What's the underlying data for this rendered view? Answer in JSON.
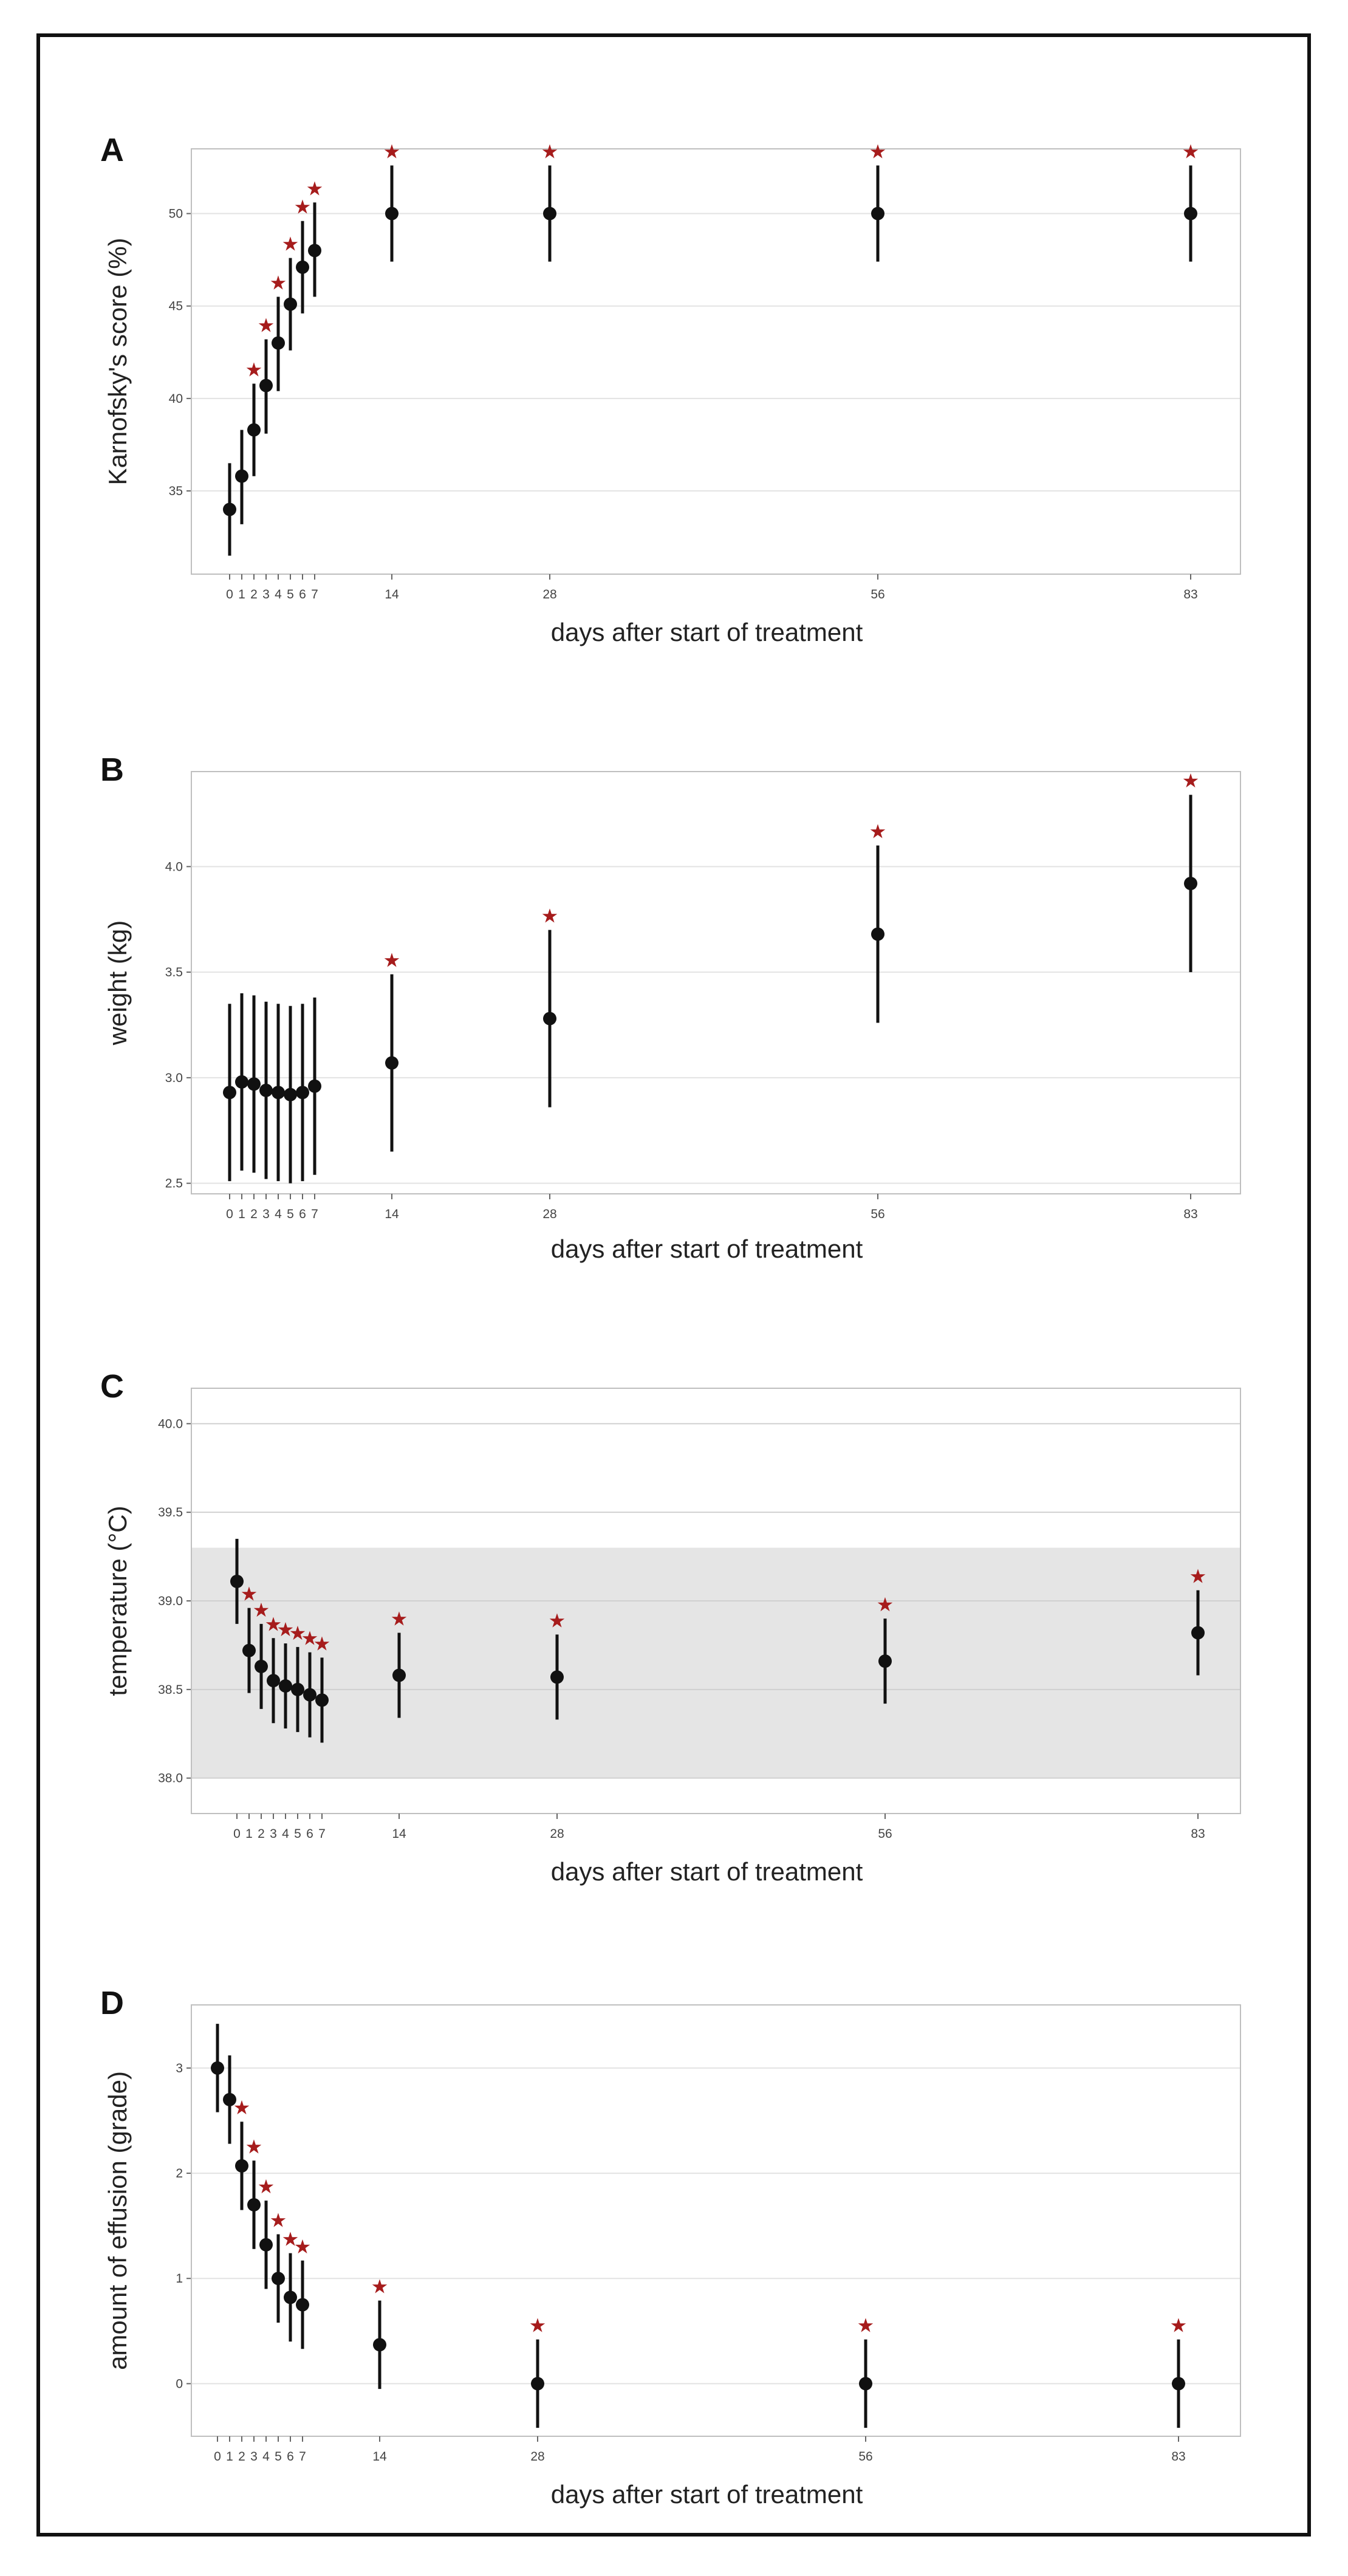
{
  "colors": {
    "star": "#a61c1c",
    "point": "#111111",
    "grid": "#e3e3e3",
    "panel_border": "#bfbfbf",
    "normal_range": "#e5e5e5"
  },
  "chart_data": [
    {
      "panel_label": "A",
      "type": "scatter",
      "xlabel": "days after start of treatment",
      "ylabel": "Karnofsky's score (%)",
      "x": [
        0,
        1,
        2,
        3,
        4,
        5,
        6,
        7,
        14,
        28,
        56,
        83
      ],
      "xticks": [
        "0",
        "1",
        "2",
        "3",
        "4",
        "5",
        "6",
        "7",
        "14",
        "28",
        "56",
        "83"
      ],
      "y": [
        34.0,
        35.8,
        38.3,
        40.7,
        43.0,
        45.1,
        47.1,
        48.0,
        50.0,
        50.0,
        50.0,
        50.0
      ],
      "err_low": [
        31.5,
        33.2,
        35.8,
        38.1,
        40.4,
        42.6,
        44.6,
        45.5,
        47.4,
        47.4,
        47.4,
        47.4
      ],
      "err_high": [
        36.5,
        38.3,
        40.8,
        43.2,
        45.5,
        47.6,
        49.6,
        50.6,
        52.6,
        52.6,
        52.6,
        52.6
      ],
      "significant": [
        false,
        false,
        true,
        true,
        true,
        true,
        true,
        true,
        true,
        true,
        true,
        true
      ],
      "ylim": [
        30.5,
        53.5
      ],
      "yticks": [
        35,
        40,
        45,
        50
      ],
      "ytick_labels": [
        "35",
        "40",
        "45",
        "50"
      ],
      "significance_marker": "★"
    },
    {
      "panel_label": "B",
      "type": "scatter",
      "xlabel": "days after start of treatment",
      "ylabel": "weight (kg)",
      "x": [
        0,
        1,
        2,
        3,
        4,
        5,
        6,
        7,
        14,
        28,
        56,
        83
      ],
      "xticks": [
        "0",
        "1",
        "2",
        "3",
        "4",
        "5",
        "6",
        "7",
        "14",
        "28",
        "56",
        "83"
      ],
      "y": [
        2.93,
        2.98,
        2.97,
        2.94,
        2.93,
        2.92,
        2.93,
        2.96,
        3.07,
        3.28,
        3.68,
        3.92
      ],
      "err_low": [
        2.51,
        2.56,
        2.55,
        2.52,
        2.51,
        2.5,
        2.51,
        2.54,
        2.65,
        2.86,
        3.26,
        3.5
      ],
      "err_high": [
        3.35,
        3.4,
        3.39,
        3.36,
        3.35,
        3.34,
        3.35,
        3.38,
        3.49,
        3.7,
        4.1,
        4.34
      ],
      "significant": [
        false,
        false,
        false,
        false,
        false,
        false,
        false,
        false,
        true,
        true,
        true,
        true
      ],
      "ylim": [
        2.45,
        4.45
      ],
      "yticks": [
        2.5,
        3.0,
        3.5,
        4.0
      ],
      "ytick_labels": [
        "2.5",
        "3.0",
        "3.5",
        "4.0"
      ],
      "significance_marker": "★"
    },
    {
      "panel_label": "C",
      "type": "scatter",
      "xlabel": "days after start of treatment",
      "ylabel": "temperature (°C)",
      "x": [
        0,
        1,
        2,
        3,
        4,
        5,
        6,
        7,
        14,
        28,
        56,
        83
      ],
      "xticks": [
        "0",
        "1",
        "2",
        "3",
        "4",
        "5",
        "6",
        "7",
        "14",
        "28",
        "56",
        "83"
      ],
      "y": [
        39.11,
        38.72,
        38.63,
        38.55,
        38.52,
        38.5,
        38.47,
        38.44,
        38.58,
        38.57,
        38.66,
        38.82
      ],
      "err_low": [
        38.87,
        38.48,
        38.39,
        38.31,
        38.28,
        38.26,
        38.23,
        38.2,
        38.34,
        38.33,
        38.42,
        38.58
      ],
      "err_high": [
        39.35,
        38.96,
        38.87,
        38.79,
        38.76,
        38.74,
        38.71,
        38.68,
        38.82,
        38.81,
        38.9,
        39.06
      ],
      "significant": [
        false,
        true,
        true,
        true,
        true,
        true,
        true,
        true,
        true,
        true,
        true,
        true
      ],
      "ylim": [
        37.8,
        40.2
      ],
      "yticks": [
        38.0,
        38.5,
        39.0,
        39.5,
        40.0
      ],
      "ytick_labels": [
        "38.0",
        "38.5",
        "39.0",
        "39.5",
        "40.0"
      ],
      "reference_band": [
        38.0,
        39.3
      ],
      "significance_marker": "★"
    },
    {
      "panel_label": "D",
      "type": "scatter",
      "xlabel": "days after start of treatment",
      "ylabel": "amount of effusion (grade)",
      "x": [
        0,
        1,
        2,
        3,
        4,
        5,
        6,
        7,
        14,
        28,
        56,
        83
      ],
      "xticks": [
        "0",
        "1",
        "2",
        "3",
        "4",
        "5",
        "6",
        "7",
        "14",
        "28",
        "56",
        "83"
      ],
      "y": [
        3.0,
        2.7,
        2.07,
        1.7,
        1.32,
        1.0,
        0.82,
        0.75,
        0.37,
        0.0,
        0.0,
        0.0
      ],
      "err_low": [
        2.58,
        2.28,
        1.65,
        1.28,
        0.9,
        0.58,
        0.4,
        0.33,
        -0.05,
        -0.42,
        -0.42,
        -0.42
      ],
      "err_high": [
        3.42,
        3.12,
        2.49,
        2.12,
        1.74,
        1.42,
        1.24,
        1.17,
        0.79,
        0.42,
        0.42,
        0.42
      ],
      "significant": [
        false,
        false,
        true,
        true,
        true,
        true,
        true,
        true,
        true,
        true,
        true,
        true
      ],
      "ylim": [
        -0.5,
        3.6
      ],
      "yticks": [
        0,
        1,
        2,
        3
      ],
      "ytick_labels": [
        "0",
        "1",
        "2",
        "3"
      ],
      "significance_marker": "★"
    }
  ]
}
